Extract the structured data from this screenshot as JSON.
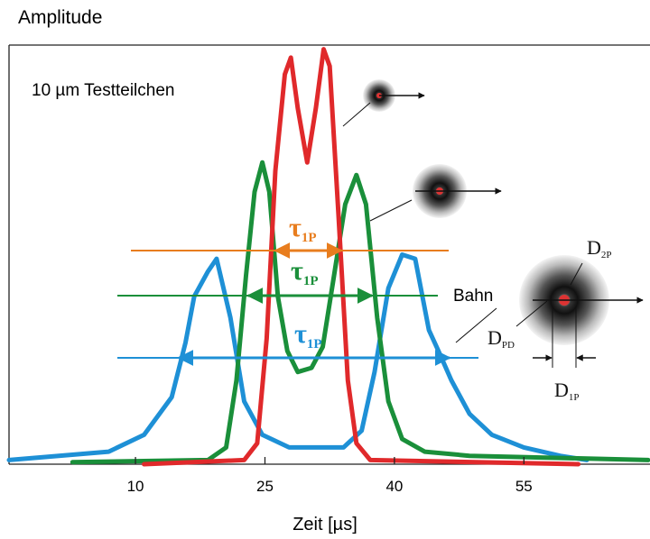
{
  "chart_data": {
    "type": "line",
    "title": "Amplitude",
    "x_label": "Zeit [µs]",
    "xlim": [
      -4.65,
      69.4
    ],
    "ylim": [
      0,
      100
    ],
    "xticks": [
      10,
      25,
      40,
      55
    ],
    "series": [
      {
        "color": "#1e90d6",
        "x": [
          -4.65,
          6.9,
          11,
          14.2,
          15.8,
          16.8,
          18.4,
          19.4,
          21,
          22.6,
          24.7,
          27.8,
          34.1,
          36.2,
          37.7,
          39.3,
          40.9,
          42.4,
          44,
          45.1,
          46.6,
          48.7,
          51.3,
          55,
          59.2,
          62.3
        ],
        "values": [
          1,
          3,
          7,
          16,
          29,
          40,
          46,
          49,
          35,
          15,
          7,
          4,
          4,
          8,
          22,
          42,
          50,
          49,
          32,
          27,
          20,
          12,
          7,
          4,
          2,
          1
        ]
      },
      {
        "color": "#1a8f3a",
        "x": [
          2.7,
          18.4,
          20.5,
          21.7,
          22.8,
          23.8,
          24.7,
          25.5,
          26.5,
          27.6,
          28.8,
          30.4,
          31.7,
          33,
          34.3,
          35.6,
          36.7,
          38,
          39.3,
          40.9,
          43.5,
          48.7,
          69.4
        ],
        "values": [
          0.5,
          1,
          4,
          20,
          45,
          65,
          72,
          65,
          40,
          27,
          22,
          23,
          28,
          45,
          62,
          69,
          62,
          35,
          15,
          6,
          3,
          2,
          1
        ]
      },
      {
        "color": "#e0292b",
        "x": [
          11,
          22.6,
          24.1,
          25.2,
          26.2,
          27.3,
          28,
          28.8,
          29.9,
          30.9,
          31.8,
          32.5,
          33.5,
          34.6,
          35.6,
          37.2,
          61.3
        ],
        "values": [
          0,
          1,
          5,
          30,
          70,
          93,
          97,
          85,
          72,
          85,
          99,
          95,
          60,
          20,
          5,
          1,
          0
        ]
      }
    ],
    "annotations": {
      "particle_label": "10 µm  Testteilchen",
      "tau": [
        {
          "symbol": "τ",
          "sub": "1P"
        },
        {
          "symbol": "τ",
          "sub": "1P"
        },
        {
          "symbol": "τ",
          "sub": "1P"
        }
      ],
      "path_label": "Bahn",
      "diameters": [
        {
          "symbol": "D",
          "sub": "2P"
        },
        {
          "symbol": "D",
          "sub": "PD"
        },
        {
          "symbol": "D",
          "sub": "1P"
        }
      ]
    }
  }
}
